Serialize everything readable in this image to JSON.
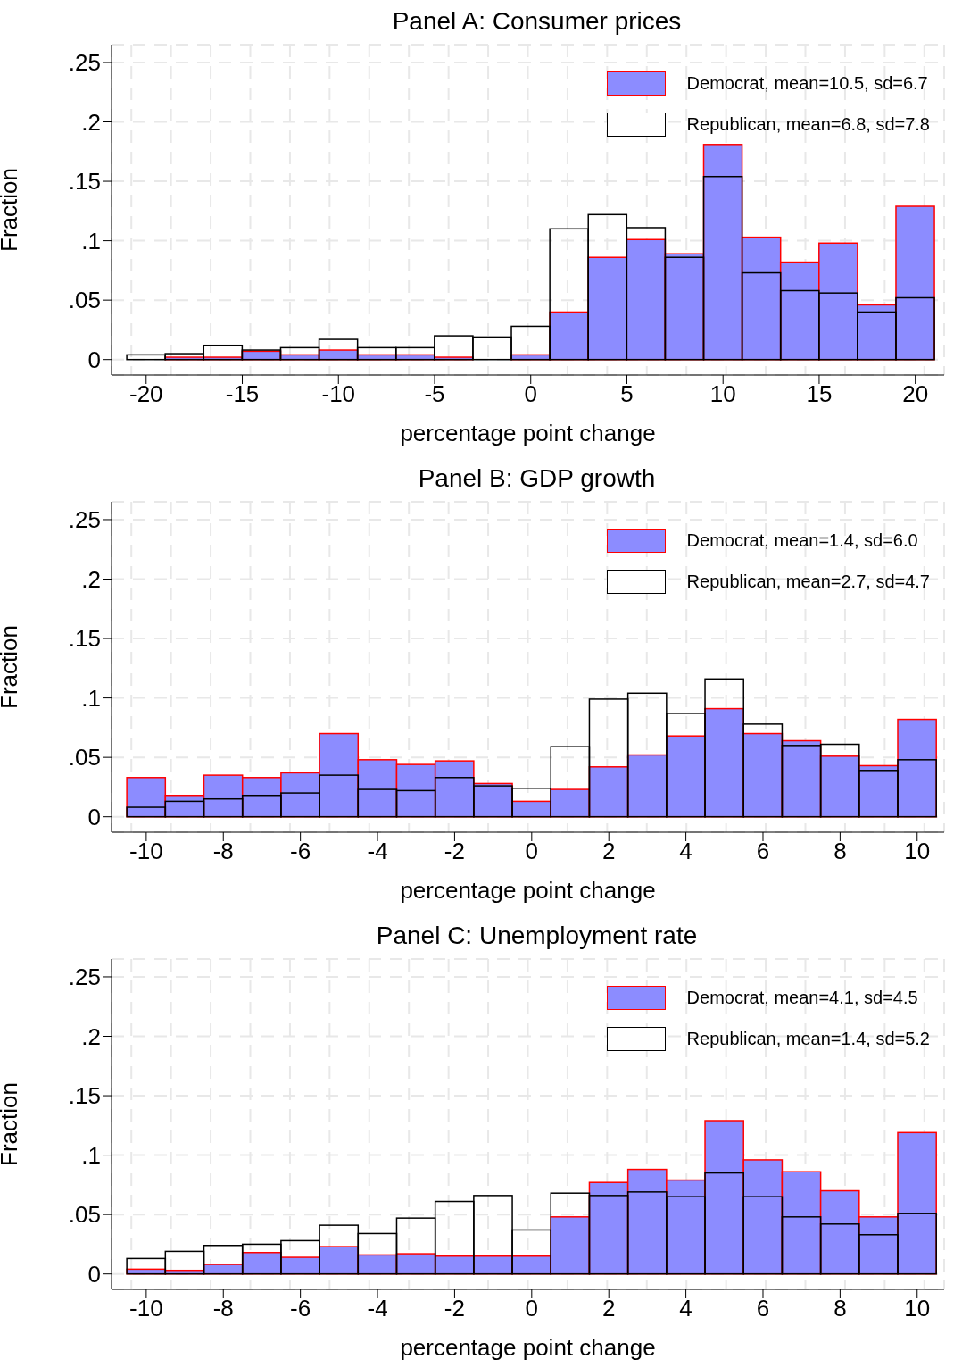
{
  "chart_data": [
    {
      "type": "histogram",
      "title": "Panel A: Consumer prices",
      "xlabel": "percentage point change",
      "ylabel": "Fraction",
      "bins": [
        -21,
        -19,
        -17,
        -15,
        -13,
        -11,
        -9,
        -7,
        -5,
        -3,
        -1,
        1,
        3,
        5,
        7,
        9,
        11,
        13,
        15,
        17,
        19,
        21
      ],
      "series": [
        {
          "name": "Democrat, mean=10.5, sd=6.7",
          "color": "#8c8cff",
          "values": [
            null,
            0.002,
            0.002,
            0.007,
            0.004,
            0.008,
            0.004,
            0.004,
            0.002,
            0.0,
            0.004,
            0.04,
            0.086,
            0.101,
            0.089,
            0.181,
            0.103,
            0.082,
            0.098,
            0.046,
            0.129
          ]
        },
        {
          "name": "Republican, mean=6.8, sd=7.8",
          "color": "#000000",
          "values": [
            0.004,
            0.005,
            0.012,
            0.008,
            0.01,
            0.017,
            0.01,
            0.01,
            0.02,
            0.019,
            0.028,
            0.11,
            0.122,
            0.111,
            0.086,
            0.154,
            0.073,
            0.058,
            0.056,
            0.04,
            0.052
          ]
        }
      ],
      "xlim": [
        -21.8,
        21.5
      ],
      "xticks": [
        -20,
        -15,
        -10,
        -5,
        0,
        5,
        10,
        15,
        20
      ],
      "ylim": [
        -0.013,
        0.265
      ],
      "yticks": [
        {
          "value": 0,
          "label": "0"
        },
        {
          "value": 0.05,
          "label": ".05"
        },
        {
          "value": 0.1,
          "label": ".1"
        },
        {
          "value": 0.15,
          "label": ".15"
        },
        {
          "value": 0.2,
          "label": ".2"
        },
        {
          "value": 0.25,
          "label": ".25"
        }
      ],
      "grid": true,
      "legend": "top right"
    },
    {
      "type": "histogram",
      "title": "Panel B: GDP growth",
      "xlabel": "percentage point change",
      "ylabel": "Fraction",
      "bins": [
        -10.5,
        -9.5,
        -8.5,
        -7.5,
        -6.5,
        -5.5,
        -4.5,
        -3.5,
        -2.5,
        -1.5,
        -0.5,
        0.5,
        1.5,
        2.5,
        3.5,
        4.5,
        5.5,
        6.5,
        7.5,
        8.5,
        9.5,
        10.5
      ],
      "series": [
        {
          "name": "Democrat, mean=1.4, sd=6.0",
          "color": "#8c8cff",
          "values": [
            0.033,
            0.018,
            0.035,
            0.033,
            0.037,
            0.07,
            0.048,
            0.044,
            0.047,
            0.028,
            0.013,
            0.023,
            0.042,
            0.052,
            0.068,
            0.091,
            0.07,
            0.064,
            0.051,
            0.043,
            0.082
          ]
        },
        {
          "name": "Republican, mean=2.7, sd=4.7",
          "color": "#000000",
          "values": [
            0.008,
            0.013,
            0.015,
            0.018,
            0.02,
            0.035,
            0.023,
            0.022,
            0.033,
            0.026,
            0.024,
            0.059,
            0.099,
            0.104,
            0.087,
            0.116,
            0.078,
            0.06,
            0.061,
            0.039,
            0.048
          ]
        }
      ],
      "xlim": [
        -10.9,
        10.7
      ],
      "xticks": [
        -10,
        -8,
        -6,
        -4,
        -2,
        0,
        2,
        4,
        6,
        8,
        10
      ],
      "ylim": [
        -0.013,
        0.265
      ],
      "yticks": [
        {
          "value": 0,
          "label": "0"
        },
        {
          "value": 0.05,
          "label": ".05"
        },
        {
          "value": 0.1,
          "label": ".1"
        },
        {
          "value": 0.15,
          "label": ".15"
        },
        {
          "value": 0.2,
          "label": ".2"
        },
        {
          "value": 0.25,
          "label": ".25"
        }
      ],
      "grid": true,
      "legend": "top right"
    },
    {
      "type": "histogram",
      "title": "Panel C: Unemployment rate",
      "xlabel": "percentage point change",
      "ylabel": "Fraction",
      "bins": [
        -10.5,
        -9.5,
        -8.5,
        -7.5,
        -6.5,
        -5.5,
        -4.5,
        -3.5,
        -2.5,
        -1.5,
        -0.5,
        0.5,
        1.5,
        2.5,
        3.5,
        4.5,
        5.5,
        6.5,
        7.5,
        8.5,
        9.5,
        10.5
      ],
      "series": [
        {
          "name": "Democrat, mean=4.1, sd=4.5",
          "color": "#8c8cff",
          "values": [
            0.004,
            0.003,
            0.008,
            0.018,
            0.014,
            0.023,
            0.016,
            0.017,
            0.015,
            0.015,
            0.015,
            0.048,
            0.077,
            0.088,
            0.079,
            0.129,
            0.096,
            0.086,
            0.07,
            0.048,
            0.119
          ]
        },
        {
          "name": "Republican, mean=1.4, sd=5.2",
          "color": "#000000",
          "values": [
            0.013,
            0.019,
            0.024,
            0.025,
            0.028,
            0.041,
            0.034,
            0.047,
            0.061,
            0.066,
            0.037,
            0.068,
            0.066,
            0.069,
            0.065,
            0.085,
            0.065,
            0.048,
            0.042,
            0.033,
            0.051
          ]
        }
      ],
      "xlim": [
        -10.9,
        10.7
      ],
      "xticks": [
        -10,
        -8,
        -6,
        -4,
        -2,
        0,
        2,
        4,
        6,
        8,
        10
      ],
      "ylim": [
        -0.013,
        0.265
      ],
      "yticks": [
        {
          "value": 0,
          "label": "0"
        },
        {
          "value": 0.05,
          "label": ".05"
        },
        {
          "value": 0.1,
          "label": ".1"
        },
        {
          "value": 0.15,
          "label": ".15"
        },
        {
          "value": 0.2,
          "label": ".2"
        },
        {
          "value": 0.25,
          "label": ".25"
        }
      ],
      "grid": true,
      "legend": "top right"
    }
  ]
}
